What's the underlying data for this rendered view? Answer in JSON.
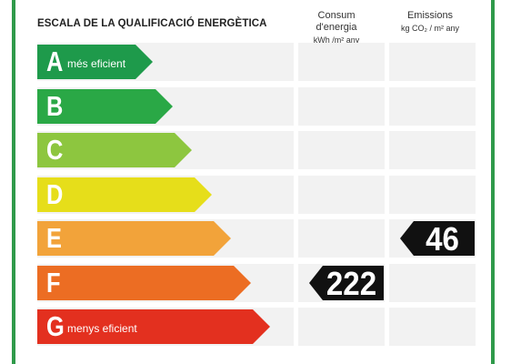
{
  "header": {
    "title": "ESCALA DE LA QUALIFICACIÓ ENERGÈTICA",
    "energy_label": "Consum d'energia",
    "energy_unit": "kWh /m² any",
    "emissions_label": "Emissions",
    "emissions_unit": "kg CO₂ / m² any"
  },
  "classes": [
    {
      "letter": "A",
      "note": "més eficient",
      "color": "#1e9a4b"
    },
    {
      "letter": "B",
      "note": "",
      "color": "#2aa846"
    },
    {
      "letter": "C",
      "note": "",
      "color": "#8dc63f"
    },
    {
      "letter": "D",
      "note": "",
      "color": "#e6de1a"
    },
    {
      "letter": "E",
      "note": "",
      "color": "#f2a33a"
    },
    {
      "letter": "F",
      "note": "",
      "color": "#ec6d23"
    },
    {
      "letter": "G",
      "note": "menys eficient",
      "color": "#e3301f"
    }
  ],
  "rating": {
    "energy": {
      "value": "222",
      "class": "F"
    },
    "emissions": {
      "value": "46",
      "class": "E"
    }
  },
  "tag_color": "#111111"
}
